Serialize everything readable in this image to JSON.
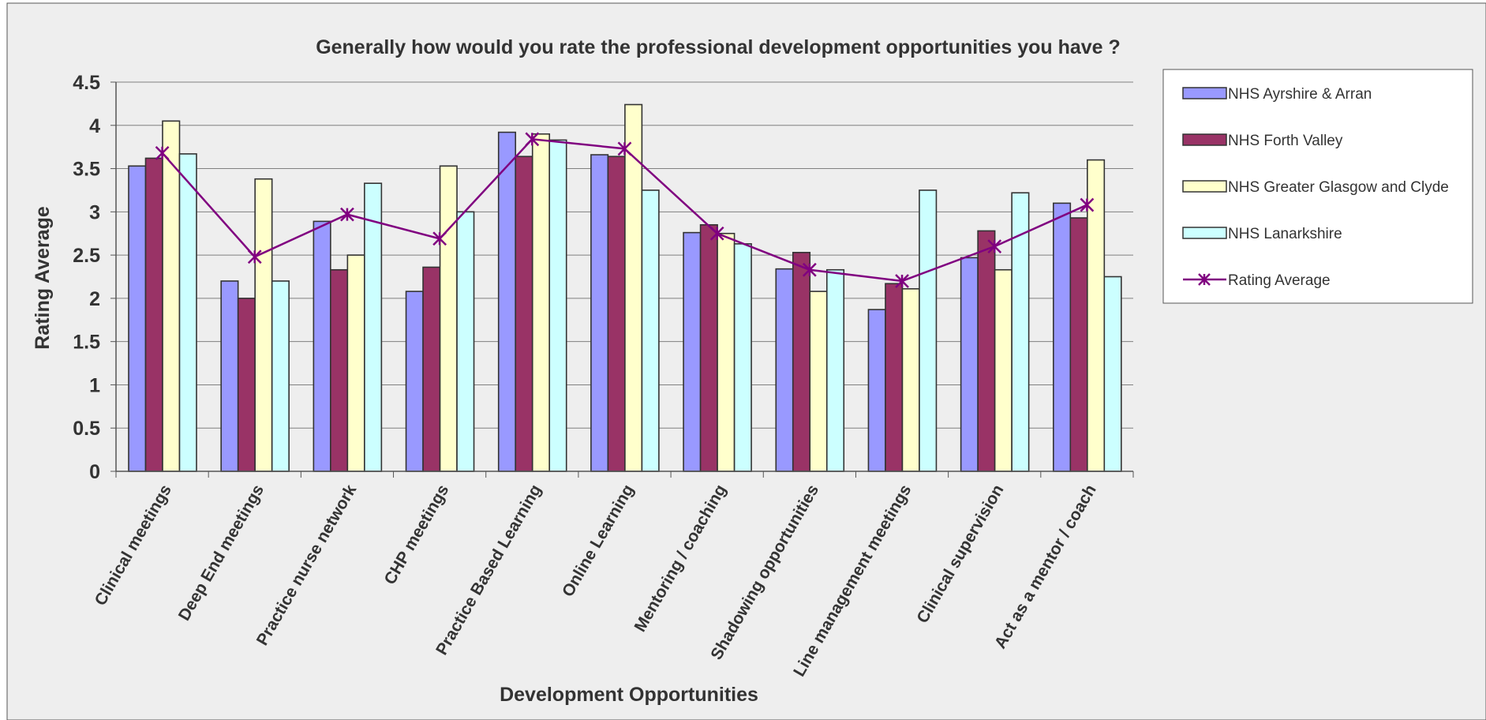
{
  "chart_data": {
    "type": "bar",
    "title": "Generally how would you rate the professional development opportunities you have ?",
    "xlabel": "Development Opportunities",
    "ylabel": "Rating Average",
    "ylim": [
      0,
      4.5
    ],
    "yticks": [
      "0",
      "0.5",
      "1",
      "1.5",
      "2",
      "2.5",
      "3",
      "3.5",
      "4",
      "4.5"
    ],
    "grid": true,
    "legend_position": "right",
    "categories": [
      "Clinical meetings",
      "Deep End meetings",
      "Practice nurse network",
      "CHP meetings",
      "Practice Based Learning",
      "Online Learning",
      "Mentoring / coaching",
      "Shadowing opportunities",
      "Line management meetings",
      "Clinical supervision",
      "Act as a mentor / coach"
    ],
    "series": [
      {
        "name": "NHS Ayrshire & Arran",
        "type": "bar",
        "color": "#9999ff",
        "values": [
          3.53,
          2.2,
          2.89,
          2.08,
          3.92,
          3.66,
          2.76,
          2.34,
          1.87,
          2.47,
          3.1
        ]
      },
      {
        "name": "NHS Forth Valley",
        "type": "bar",
        "color": "#993366",
        "values": [
          3.62,
          2.0,
          2.33,
          2.36,
          3.64,
          3.64,
          2.85,
          2.53,
          2.17,
          2.78,
          2.93
        ]
      },
      {
        "name": "NHS Greater Glasgow and Clyde",
        "type": "bar",
        "color": "#ffffcc",
        "values": [
          4.05,
          3.38,
          2.5,
          3.53,
          3.9,
          4.24,
          2.75,
          2.08,
          2.11,
          2.33,
          3.6
        ]
      },
      {
        "name": "NHS Lanarkshire",
        "type": "bar",
        "color": "#ccffff",
        "values": [
          3.67,
          2.2,
          3.33,
          3.0,
          3.83,
          3.25,
          2.63,
          2.33,
          3.25,
          3.22,
          2.25
        ]
      },
      {
        "name": "Rating Average",
        "type": "line",
        "color": "#800080",
        "values": [
          3.68,
          2.48,
          2.97,
          2.69,
          3.84,
          3.73,
          2.75,
          2.33,
          2.2,
          2.6,
          3.08
        ]
      }
    ]
  }
}
